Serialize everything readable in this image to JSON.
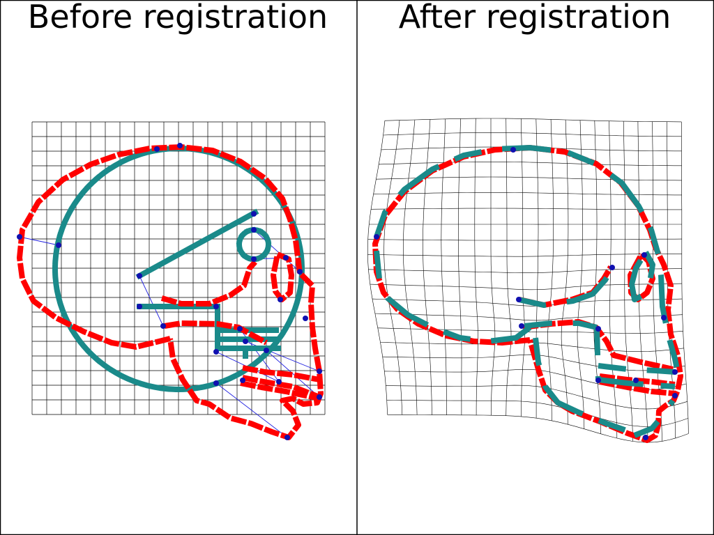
{
  "panels": {
    "left_title": "Before registration",
    "right_title": "After registration"
  },
  "colors": {
    "source_curve": "#ff0000",
    "target_curve": "#1a8a8a",
    "landmark": "#1010b0",
    "correspondence_line": "#2020e0",
    "grid": "#000000"
  }
}
